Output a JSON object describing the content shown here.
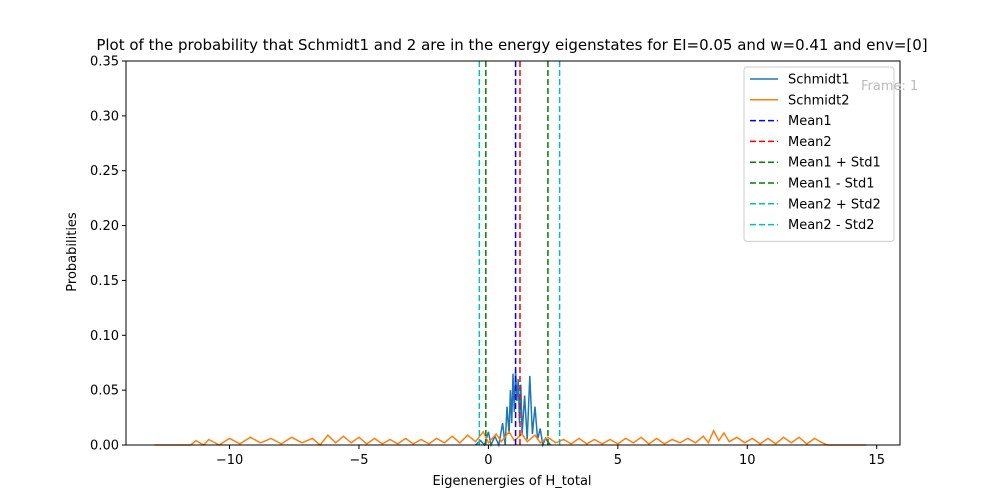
{
  "chart_data": {
    "type": "line",
    "title": "Plot of the probability that Schmidt1 and 2 are in the energy eigenstates for EI=0.05 and w=0.41 and env=[0]",
    "xlabel": "Eigenenergies of H_total",
    "ylabel": "Probabilities",
    "xlim": [
      -14.0,
      15.9
    ],
    "ylim": [
      0,
      0.35
    ],
    "xticks": [
      -10,
      -5,
      0,
      5,
      10,
      15
    ],
    "xtick_labels": [
      "−10",
      "−5",
      "0",
      "5",
      "10",
      "15"
    ],
    "yticks": [
      0.0,
      0.05,
      0.1,
      0.15,
      0.2,
      0.25,
      0.3,
      0.35
    ],
    "ytick_labels": [
      "0.00",
      "0.05",
      "0.10",
      "0.15",
      "0.20",
      "0.25",
      "0.30",
      "0.35"
    ],
    "grid": false,
    "legend_position": "upper-right",
    "annotation": "Frame: 1",
    "series": [
      {
        "name": "Schmidt1",
        "color": "#1f77b4",
        "style": "solid",
        "points": [
          [
            -0.5,
            0.0
          ],
          [
            -0.3,
            0.004
          ],
          [
            -0.15,
            0.0
          ],
          [
            0.0,
            0.012
          ],
          [
            0.1,
            0.0
          ],
          [
            0.25,
            0.008
          ],
          [
            0.4,
            0.0
          ],
          [
            0.55,
            0.02
          ],
          [
            0.65,
            0.0
          ],
          [
            0.72,
            0.035
          ],
          [
            0.8,
            0.01
          ],
          [
            0.85,
            0.05
          ],
          [
            0.9,
            0.02
          ],
          [
            0.95,
            0.065
          ],
          [
            1.0,
            0.03
          ],
          [
            1.05,
            0.068
          ],
          [
            1.1,
            0.04
          ],
          [
            1.15,
            0.06
          ],
          [
            1.2,
            0.02
          ],
          [
            1.25,
            0.055
          ],
          [
            1.3,
            0.01
          ],
          [
            1.4,
            0.045
          ],
          [
            1.5,
            0.005
          ],
          [
            1.6,
            0.063
          ],
          [
            1.7,
            0.01
          ],
          [
            1.8,
            0.035
          ],
          [
            1.9,
            0.005
          ],
          [
            2.0,
            0.015
          ],
          [
            2.1,
            0.0
          ],
          [
            2.2,
            0.006
          ],
          [
            2.4,
            0.0
          ]
        ]
      },
      {
        "name": "Schmidt2",
        "color": "#ff7f0e",
        "style": "solid",
        "points": [
          [
            -12.9,
            0.0
          ],
          [
            -11.5,
            0.0
          ],
          [
            -11.3,
            0.004
          ],
          [
            -11.0,
            0.0
          ],
          [
            -10.8,
            0.005
          ],
          [
            -10.4,
            0.0
          ],
          [
            -10.0,
            0.006
          ],
          [
            -9.6,
            0.001
          ],
          [
            -9.2,
            0.007
          ],
          [
            -8.8,
            0.002
          ],
          [
            -8.4,
            0.006
          ],
          [
            -8.0,
            0.001
          ],
          [
            -7.6,
            0.007
          ],
          [
            -7.2,
            0.002
          ],
          [
            -6.8,
            0.006
          ],
          [
            -6.5,
            0.0
          ],
          [
            -6.2,
            0.009
          ],
          [
            -5.9,
            0.002
          ],
          [
            -5.6,
            0.008
          ],
          [
            -5.3,
            0.002
          ],
          [
            -5.0,
            0.007
          ],
          [
            -4.7,
            0.001
          ],
          [
            -4.4,
            0.006
          ],
          [
            -4.1,
            0.001
          ],
          [
            -3.8,
            0.005
          ],
          [
            -3.5,
            0.001
          ],
          [
            -3.2,
            0.006
          ],
          [
            -2.9,
            0.001
          ],
          [
            -2.6,
            0.005
          ],
          [
            -2.3,
            0.001
          ],
          [
            -2.0,
            0.006
          ],
          [
            -1.7,
            0.002
          ],
          [
            -1.4,
            0.008
          ],
          [
            -1.1,
            0.002
          ],
          [
            -0.8,
            0.009
          ],
          [
            -0.5,
            0.003
          ],
          [
            -0.2,
            0.012
          ],
          [
            0.0,
            0.002
          ],
          [
            0.3,
            0.01
          ],
          [
            0.5,
            0.003
          ],
          [
            0.8,
            0.012
          ],
          [
            1.0,
            0.004
          ],
          [
            1.3,
            0.01
          ],
          [
            1.5,
            0.003
          ],
          [
            1.8,
            0.009
          ],
          [
            2.0,
            0.002
          ],
          [
            2.3,
            0.007
          ],
          [
            2.6,
            0.002
          ],
          [
            2.9,
            0.005
          ],
          [
            3.2,
            0.001
          ],
          [
            3.5,
            0.006
          ],
          [
            3.8,
            0.001
          ],
          [
            4.1,
            0.005
          ],
          [
            4.4,
            0.001
          ],
          [
            4.7,
            0.005
          ],
          [
            5.0,
            0.001
          ],
          [
            5.3,
            0.006
          ],
          [
            5.6,
            0.002
          ],
          [
            5.9,
            0.007
          ],
          [
            6.2,
            0.001
          ],
          [
            6.5,
            0.006
          ],
          [
            6.8,
            0.001
          ],
          [
            7.1,
            0.005
          ],
          [
            7.4,
            0.002
          ],
          [
            7.7,
            0.006
          ],
          [
            8.0,
            0.002
          ],
          [
            8.3,
            0.008
          ],
          [
            8.5,
            0.002
          ],
          [
            8.7,
            0.013
          ],
          [
            8.9,
            0.004
          ],
          [
            9.1,
            0.011
          ],
          [
            9.3,
            0.003
          ],
          [
            9.6,
            0.007
          ],
          [
            9.9,
            0.002
          ],
          [
            10.2,
            0.006
          ],
          [
            10.5,
            0.001
          ],
          [
            10.8,
            0.006
          ],
          [
            11.1,
            0.001
          ],
          [
            11.4,
            0.007
          ],
          [
            11.7,
            0.002
          ],
          [
            12.0,
            0.007
          ],
          [
            12.3,
            0.001
          ],
          [
            12.6,
            0.006
          ],
          [
            12.9,
            0.002
          ],
          [
            13.1,
            0.0
          ],
          [
            14.6,
            0.0
          ]
        ]
      }
    ],
    "vlines": [
      {
        "name": "Mean1",
        "x": 1.05,
        "color": "#0000ff",
        "style": "dashed"
      },
      {
        "name": "Mean2",
        "x": 1.22,
        "color": "#ff0000",
        "style": "dashed"
      },
      {
        "name": "Mean1 + Std1",
        "x": 2.3,
        "color": "#008000",
        "style": "dashed"
      },
      {
        "name": "Mean1 - Std1",
        "x": -0.1,
        "color": "#008000",
        "style": "dashed"
      },
      {
        "name": "Mean2 + Std2",
        "x": 2.75,
        "color": "#00bfbf",
        "style": "dashed"
      },
      {
        "name": "Mean2 - Std2",
        "x": -0.35,
        "color": "#00bfbf",
        "style": "dashed"
      }
    ]
  }
}
